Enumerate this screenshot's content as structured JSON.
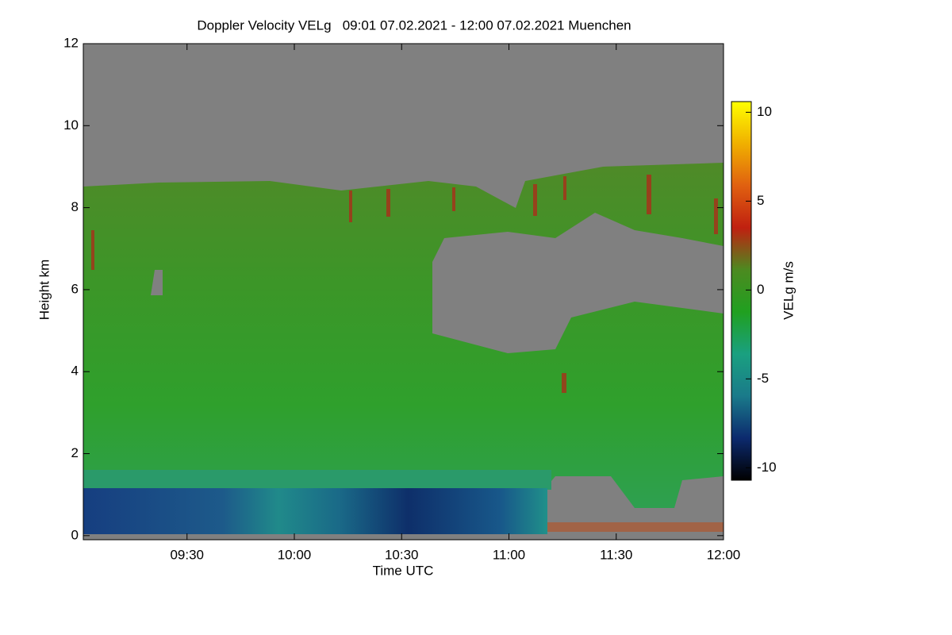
{
  "chart_data": {
    "type": "heatmap",
    "title": "Doppler Velocity VELg   09:01 07.02.2021 - 12:00 07.02.2021 Muenchen",
    "x_label": "Time UTC",
    "y_label": "Height km",
    "xlim": [
      541,
      720
    ],
    "xticks": [
      {
        "value": 570,
        "label": "09:30"
      },
      {
        "value": 600,
        "label": "10:00"
      },
      {
        "value": 630,
        "label": "10:30"
      },
      {
        "value": 660,
        "label": "11:00"
      },
      {
        "value": 690,
        "label": "11:30"
      },
      {
        "value": 720,
        "label": "12:00"
      }
    ],
    "ylim": [
      -0.1,
      12
    ],
    "yticks": [
      0,
      2,
      4,
      6,
      8,
      10,
      12
    ],
    "colorbar": {
      "label": "VELg m/s",
      "lim": [
        -10.7,
        10.6
      ],
      "ticks": [
        -10,
        -5,
        0,
        5,
        10
      ],
      "colormap": [
        "#000000",
        "#0c2a6e",
        "#1a7a8a",
        "#1aa080",
        "#20a020",
        "#4c8a20",
        "#c02010",
        "#e06010",
        "#f0b000",
        "#ffff00"
      ]
    }
  }
}
